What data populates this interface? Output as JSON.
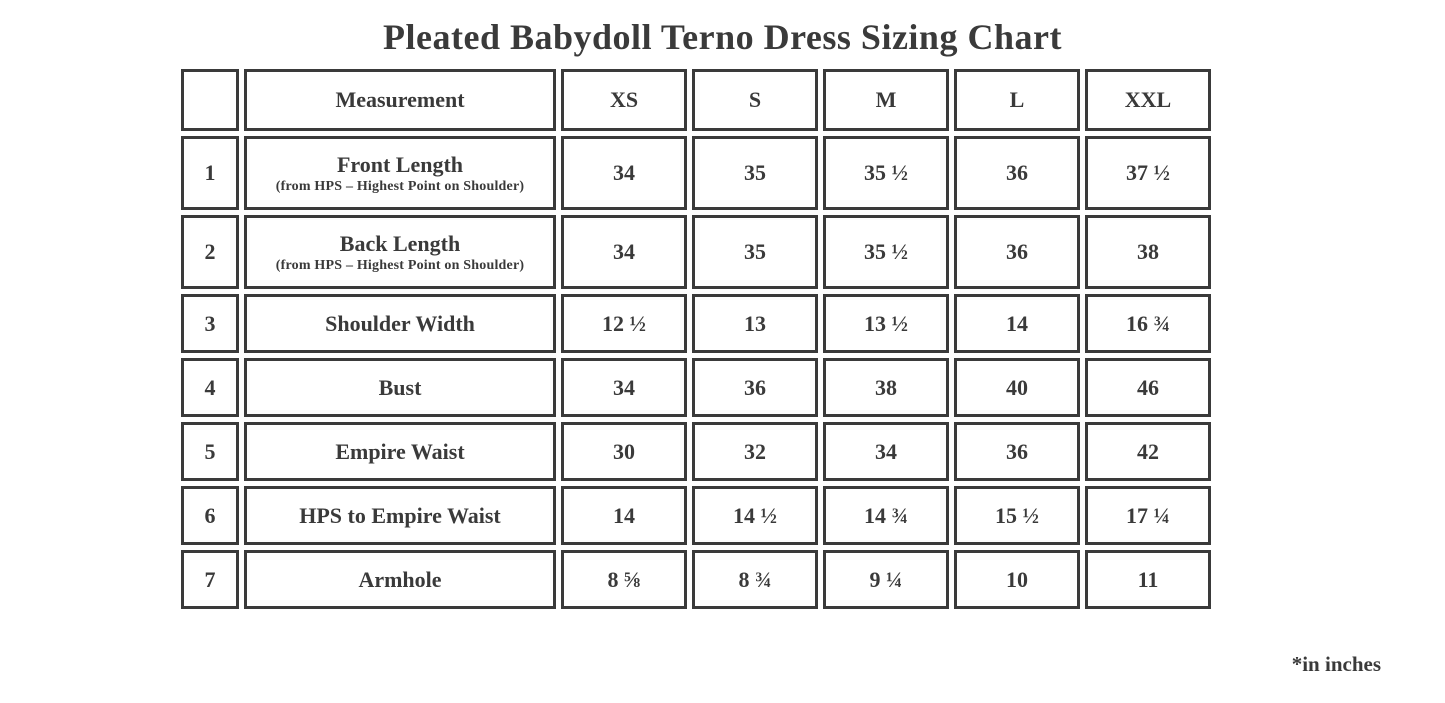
{
  "page": {
    "title": "Pleated Babydoll Terno Dress Sizing Chart",
    "footnote": "*in inches"
  },
  "table": {
    "columns": [
      "",
      "Measurement",
      "XS",
      "S",
      "M",
      "L",
      "XXL"
    ],
    "rows": [
      {
        "num": "1",
        "label": "Front Length",
        "sublabel": "(from HPS – Highest Point on Shoulder)",
        "values": [
          "34",
          "35",
          "35 ½",
          "36",
          "37 ½"
        ]
      },
      {
        "num": "2",
        "label": "Back Length",
        "sublabel": "(from HPS – Highest Point on Shoulder)",
        "values": [
          "34",
          "35",
          "35 ½",
          "36",
          "38"
        ]
      },
      {
        "num": "3",
        "label": "Shoulder Width",
        "sublabel": "",
        "values": [
          "12 ½",
          "13",
          "13 ½",
          "14",
          "16 ¾"
        ]
      },
      {
        "num": "4",
        "label": "Bust",
        "sublabel": "",
        "values": [
          "34",
          "36",
          "38",
          "40",
          "46"
        ]
      },
      {
        "num": "5",
        "label": "Empire Waist",
        "sublabel": "",
        "values": [
          "30",
          "32",
          "34",
          "36",
          "42"
        ]
      },
      {
        "num": "6",
        "label": "HPS to Empire Waist",
        "sublabel": "",
        "values": [
          "14",
          "14 ½",
          "14 ¾",
          "15 ½",
          "17 ¼"
        ]
      },
      {
        "num": "7",
        "label": "Armhole",
        "sublabel": "",
        "values": [
          "8 ⅝",
          "8 ¾",
          "9 ¼",
          "10",
          "11"
        ]
      }
    ]
  },
  "colors": {
    "text": "#3a3a3a",
    "border": "#3a3a3a",
    "background": "#ffffff"
  }
}
